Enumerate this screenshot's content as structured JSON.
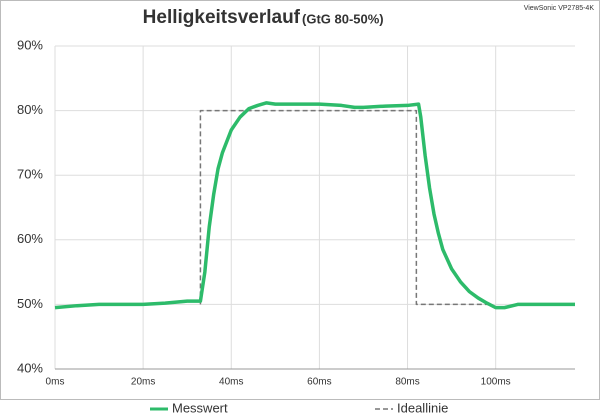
{
  "chart_data": {
    "type": "line",
    "title": "Helligkeitsverlauf",
    "subtitle": "(GtG 80-50%)",
    "annotation": "ViewSonic VP2785-4K",
    "xlim": [
      0,
      118
    ],
    "xticks": [
      {
        "value": 0,
        "label": "0ms"
      },
      {
        "value": 20,
        "label": "20ms"
      },
      {
        "value": 40,
        "label": "40ms"
      },
      {
        "value": 60,
        "label": "60ms"
      },
      {
        "value": 80,
        "label": "80ms"
      },
      {
        "value": 100,
        "label": "100ms"
      }
    ],
    "ylim": [
      40,
      90
    ],
    "yticks": [
      {
        "value": 40,
        "label": "40%"
      },
      {
        "value": 50,
        "label": "50%"
      },
      {
        "value": 60,
        "label": "60%"
      },
      {
        "value": 70,
        "label": "70%"
      },
      {
        "value": 80,
        "label": "80%"
      },
      {
        "value": 90,
        "label": "90%"
      }
    ],
    "grid": true,
    "legend": "bottom",
    "series": [
      {
        "name": "Messwert",
        "color": "#2dbb6a",
        "dash": false,
        "x": [
          0,
          5,
          10,
          15,
          20,
          25,
          30,
          33,
          34,
          35,
          36,
          37,
          38,
          40,
          42,
          44,
          46,
          48,
          50,
          55,
          60,
          65,
          68,
          70,
          75,
          80,
          82.5,
          83,
          84,
          85,
          86,
          87,
          88,
          90,
          92,
          94,
          96,
          98,
          100,
          102,
          105,
          110,
          115,
          118
        ],
        "values": [
          49.5,
          49.8,
          50,
          50,
          50,
          50.2,
          50.5,
          50.5,
          55,
          62,
          67,
          71,
          73.5,
          77,
          79,
          80.3,
          80.8,
          81.2,
          81,
          81,
          81,
          80.8,
          80.5,
          80.5,
          80.7,
          80.8,
          81,
          79,
          73,
          68,
          64,
          61,
          58.5,
          55.5,
          53.5,
          52,
          51,
          50.2,
          49.5,
          49.5,
          50,
          50,
          50,
          50
        ]
      },
      {
        "name": "Ideallinie",
        "color": "#777777",
        "dash": true,
        "x": [
          33,
          33,
          82,
          82,
          99
        ],
        "values": [
          50,
          80,
          80,
          50,
          50
        ]
      }
    ]
  }
}
